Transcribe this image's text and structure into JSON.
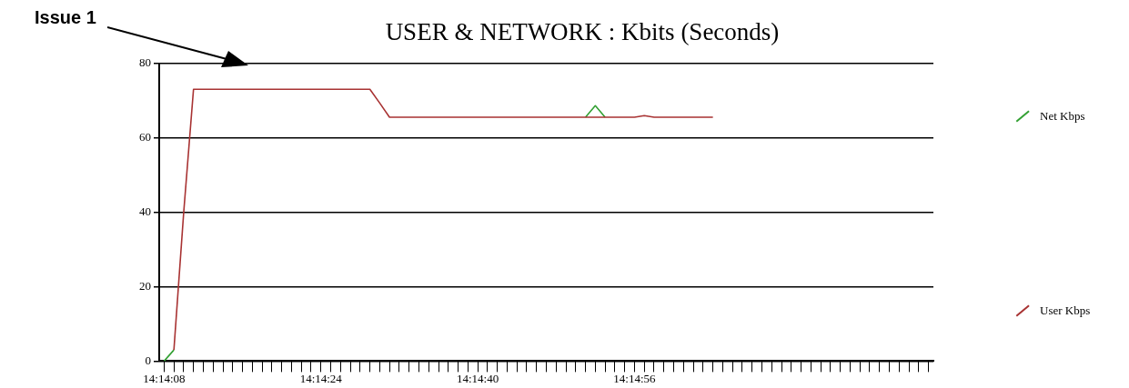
{
  "chart_data": {
    "type": "line",
    "title": "USER & NETWORK : Kbits (Seconds)",
    "categories": [
      "14:14:08",
      null,
      null,
      null,
      null,
      null,
      null,
      null,
      null,
      null,
      null,
      null,
      null,
      null,
      null,
      null,
      "14:14:24",
      null,
      null,
      null,
      null,
      null,
      null,
      null,
      null,
      null,
      null,
      null,
      null,
      null,
      null,
      null,
      "14:14:40",
      null,
      null,
      null,
      null,
      null,
      null,
      null,
      null,
      null,
      null,
      null,
      null,
      null,
      null,
      null,
      "14:14:56",
      null,
      null,
      null,
      null,
      null,
      null,
      null,
      null,
      null,
      null,
      null,
      null,
      null,
      null,
      null,
      null,
      null,
      null,
      null,
      null,
      null,
      null,
      null,
      null,
      null,
      null,
      null,
      null,
      null,
      null
    ],
    "series": [
      {
        "name": "Net Kbps",
        "color": "#33a033",
        "values": [
          0,
          3,
          null,
          null,
          null,
          null,
          null,
          null,
          null,
          null,
          null,
          null,
          null,
          null,
          null,
          null,
          null,
          null,
          null,
          null,
          null,
          null,
          null,
          null,
          null,
          null,
          null,
          null,
          null,
          null,
          null,
          null,
          null,
          null,
          null,
          null,
          null,
          null,
          null,
          null,
          null,
          null,
          null,
          65.6,
          68.7,
          65.6,
          null,
          null,
          null,
          null,
          null,
          null,
          null,
          null,
          null,
          null,
          null,
          null,
          null,
          null,
          null,
          null,
          null,
          null,
          null,
          null,
          null,
          null,
          null,
          null,
          null,
          null,
          null,
          null,
          null,
          null,
          null,
          null,
          null
        ]
      },
      {
        "name": "User Kbps",
        "color": "#a83232",
        "values": [
          null,
          3,
          40,
          73.1,
          73.1,
          73.1,
          73.1,
          73.1,
          73.1,
          73.1,
          73.1,
          73.1,
          73.1,
          73.1,
          73.1,
          73.1,
          73.1,
          73.1,
          73.1,
          73.1,
          73.1,
          73.1,
          69.4,
          65.6,
          65.6,
          65.6,
          65.6,
          65.6,
          65.6,
          65.6,
          65.6,
          65.6,
          65.6,
          65.6,
          65.6,
          65.6,
          65.6,
          65.6,
          65.6,
          65.6,
          65.6,
          65.6,
          65.6,
          65.6,
          65.6,
          65.6,
          65.6,
          65.6,
          65.6,
          66.0,
          65.6,
          65.6,
          65.6,
          65.6,
          65.6,
          65.6,
          65.6,
          null,
          null,
          null,
          null,
          null,
          null,
          null,
          null,
          null,
          null,
          null,
          null,
          null,
          null,
          null,
          null,
          null,
          null,
          null,
          null,
          null,
          null
        ]
      }
    ],
    "ylim": [
      0,
      80
    ],
    "yticks": [
      0,
      20,
      40,
      60,
      80
    ],
    "grid": "y",
    "legend": "right",
    "marker": "none",
    "line_style": "solid",
    "annotations": [
      "Issue 1"
    ]
  }
}
